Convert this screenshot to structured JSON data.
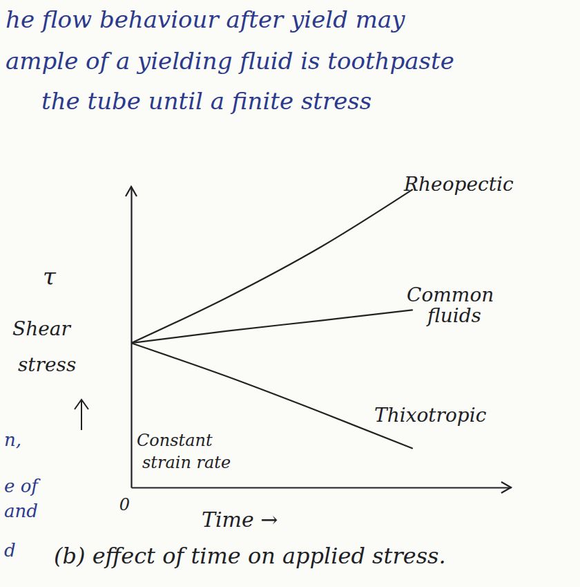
{
  "chart_data": {
    "type": "line",
    "caption": "(b) effect of time on applied stress.",
    "xlabel": "Time →",
    "ylabel": "Shear stress",
    "annotations": [
      "τ",
      "Constant strain rate"
    ],
    "x": [
      0,
      2.5,
      5,
      7.4
    ],
    "series": [
      {
        "name": "Rheopectic",
        "color": "#222222",
        "values": [
          4.8,
          6.3,
          8.0,
          9.9
        ]
      },
      {
        "name": "Common fluids",
        "color": "#222222",
        "values": [
          4.8,
          5.2,
          5.55,
          5.9
        ]
      },
      {
        "name": "Thixotropic",
        "color": "#222222",
        "values": [
          4.8,
          3.7,
          2.5,
          1.3
        ]
      }
    ],
    "xlim": [
      0,
      10
    ],
    "ylim": [
      0,
      10
    ],
    "xticks": [
      0
    ],
    "yticks": [],
    "tick_labels": "x",
    "grid": false
  },
  "notes": [
    "he flow behaviour after yield may",
    "ample of a yielding fluid is toothpaste",
    "the tube until a finite stress"
  ],
  "margin_notes": [
    "n,",
    "e of",
    "and",
    "d"
  ]
}
